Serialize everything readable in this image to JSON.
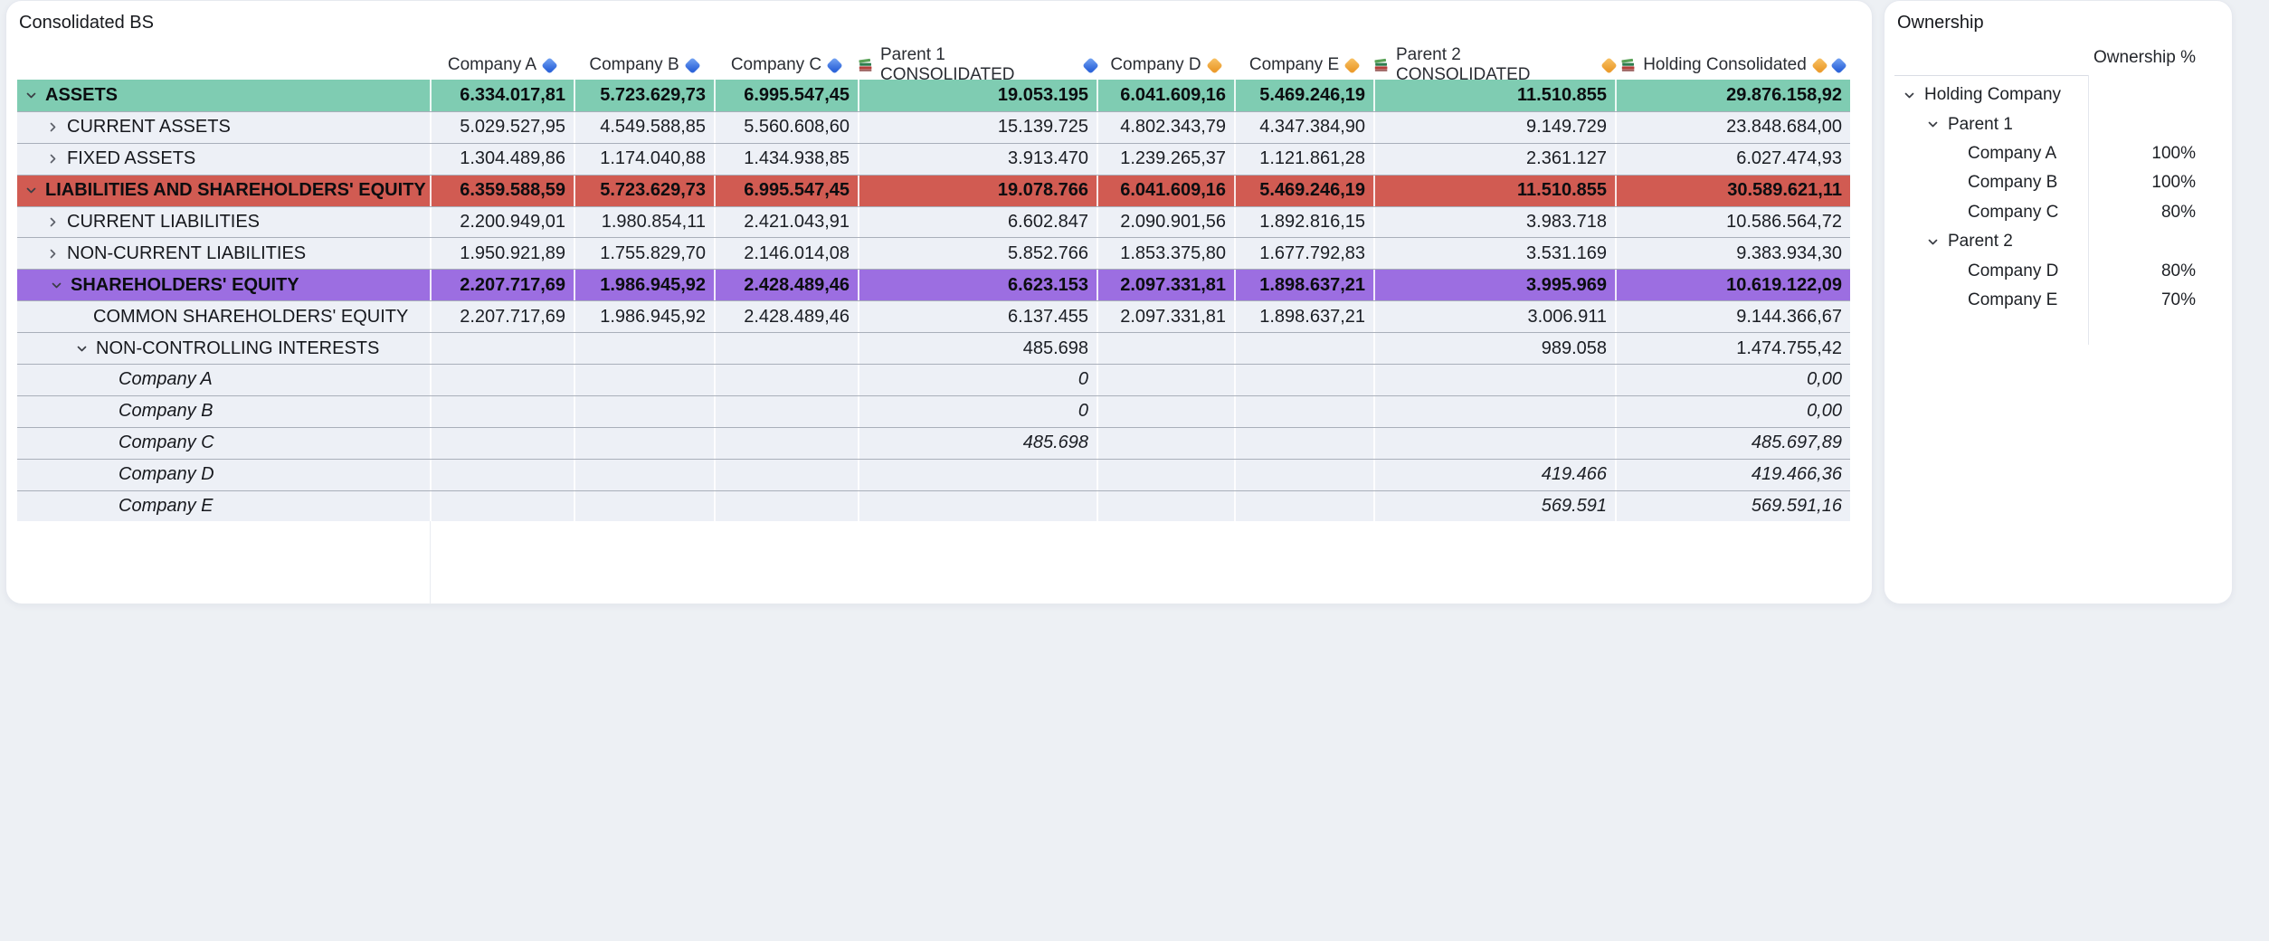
{
  "title": "Consolidated BS",
  "colors": {
    "assets_row": "#7fccb2",
    "liabilities_row": "#d15b52",
    "equity_row": "#9c6ee1",
    "diamond_blue": "#2f66da",
    "diamond_orange": "#ec9d2f",
    "row_background": "#edf0f6"
  },
  "table": {
    "columns": [
      {
        "label": "Company A",
        "books": false,
        "diamonds": [
          "blue"
        ]
      },
      {
        "label": "Company B",
        "books": false,
        "diamonds": [
          "blue"
        ]
      },
      {
        "label": "Company C",
        "books": false,
        "diamonds": [
          "blue"
        ]
      },
      {
        "label": "Parent 1 CONSOLIDATED",
        "books": true,
        "diamonds": [
          "blue"
        ]
      },
      {
        "label": "Company D",
        "books": false,
        "diamonds": [
          "orange"
        ]
      },
      {
        "label": "Company E",
        "books": false,
        "diamonds": [
          "orange"
        ]
      },
      {
        "label": "Parent 2 CONSOLIDATED",
        "books": true,
        "diamonds": [
          "orange"
        ]
      },
      {
        "label": "Holding Consolidated",
        "books": true,
        "diamonds": [
          "orange",
          "blue"
        ]
      }
    ],
    "rows": [
      {
        "label": "ASSETS",
        "style": "section-assets",
        "chevron": "down",
        "values": [
          "6.334.017,81",
          "5.723.629,73",
          "6.995.547,45",
          "19.053.195",
          "6.041.609,16",
          "5.469.246,19",
          "11.510.855",
          "29.876.158,92"
        ]
      },
      {
        "label": "CURRENT ASSETS",
        "style": "sub",
        "chevron": "right",
        "values": [
          "5.029.527,95",
          "4.549.588,85",
          "5.560.608,60",
          "15.139.725",
          "4.802.343,79",
          "4.347.384,90",
          "9.149.729",
          "23.848.684,00"
        ]
      },
      {
        "label": "FIXED ASSETS",
        "style": "sub",
        "chevron": "right",
        "values": [
          "1.304.489,86",
          "1.174.040,88",
          "1.434.938,85",
          "3.913.470",
          "1.239.265,37",
          "1.121.861,28",
          "2.361.127",
          "6.027.474,93"
        ]
      },
      {
        "label": "LIABILITIES AND SHAREHOLDERS' EQUITY",
        "style": "section-liabilities",
        "chevron": "down",
        "values": [
          "6.359.588,59",
          "5.723.629,73",
          "6.995.547,45",
          "19.078.766",
          "6.041.609,16",
          "5.469.246,19",
          "11.510.855",
          "30.589.621,11"
        ]
      },
      {
        "label": "CURRENT LIABILITIES",
        "style": "sub",
        "chevron": "right",
        "values": [
          "2.200.949,01",
          "1.980.854,11",
          "2.421.043,91",
          "6.602.847",
          "2.090.901,56",
          "1.892.816,15",
          "3.983.718",
          "10.586.564,72"
        ]
      },
      {
        "label": "NON-CURRENT LIABILITIES",
        "style": "sub",
        "chevron": "right",
        "values": [
          "1.950.921,89",
          "1.755.829,70",
          "2.146.014,08",
          "5.852.766",
          "1.853.375,80",
          "1.677.792,83",
          "3.531.169",
          "9.383.934,30"
        ]
      },
      {
        "label": "SHAREHOLDERS' EQUITY",
        "style": "section-equity",
        "chevron": "down",
        "values": [
          "2.207.717,69",
          "1.986.945,92",
          "2.428.489,46",
          "6.623.153",
          "2.097.331,81",
          "1.898.637,21",
          "3.995.969",
          "10.619.122,09"
        ]
      },
      {
        "label": "COMMON SHAREHOLDERS' EQUITY",
        "style": "plain",
        "chevron": null,
        "values": [
          "2.207.717,69",
          "1.986.945,92",
          "2.428.489,46",
          "6.137.455",
          "2.097.331,81",
          "1.898.637,21",
          "3.006.911",
          "9.144.366,67"
        ]
      },
      {
        "label": "NON-CONTROLLING INTERESTS",
        "style": "nci",
        "chevron": "down",
        "values": [
          "",
          "",
          "",
          "485.698",
          "",
          "",
          "989.058",
          "1.474.755,42"
        ]
      },
      {
        "label": "Company A",
        "style": "company",
        "chevron": null,
        "values": [
          "",
          "",
          "",
          "0",
          "",
          "",
          "",
          "0,00"
        ]
      },
      {
        "label": "Company B",
        "style": "company",
        "chevron": null,
        "values": [
          "",
          "",
          "",
          "0",
          "",
          "",
          "",
          "0,00"
        ]
      },
      {
        "label": "Company C",
        "style": "company",
        "chevron": null,
        "values": [
          "",
          "",
          "",
          "485.698",
          "",
          "",
          "",
          "485.697,89"
        ]
      },
      {
        "label": "Company D",
        "style": "company",
        "chevron": null,
        "values": [
          "",
          "",
          "",
          "",
          "",
          "",
          "419.466",
          "419.466,36"
        ]
      },
      {
        "label": "Company E",
        "style": "company",
        "chevron": null,
        "values": [
          "",
          "",
          "",
          "",
          "",
          "",
          "569.591",
          "569.591,16"
        ]
      }
    ]
  },
  "ownership": {
    "title": "Ownership",
    "percent_header": "Ownership %",
    "tree": [
      {
        "label": "Holding Company",
        "level": 0,
        "chevron": "down",
        "pct": ""
      },
      {
        "label": "Parent 1",
        "level": 1,
        "chevron": "down",
        "pct": ""
      },
      {
        "label": "Company A",
        "level": 2,
        "chevron": null,
        "pct": "100%"
      },
      {
        "label": "Company B",
        "level": 2,
        "chevron": null,
        "pct": "100%"
      },
      {
        "label": "Company C",
        "level": 2,
        "chevron": null,
        "pct": "80%"
      },
      {
        "label": "Parent 2",
        "level": 1,
        "chevron": "down",
        "pct": ""
      },
      {
        "label": "Company D",
        "level": 2,
        "chevron": null,
        "pct": "80%"
      },
      {
        "label": "Company E",
        "level": 2,
        "chevron": null,
        "pct": "70%"
      }
    ]
  }
}
